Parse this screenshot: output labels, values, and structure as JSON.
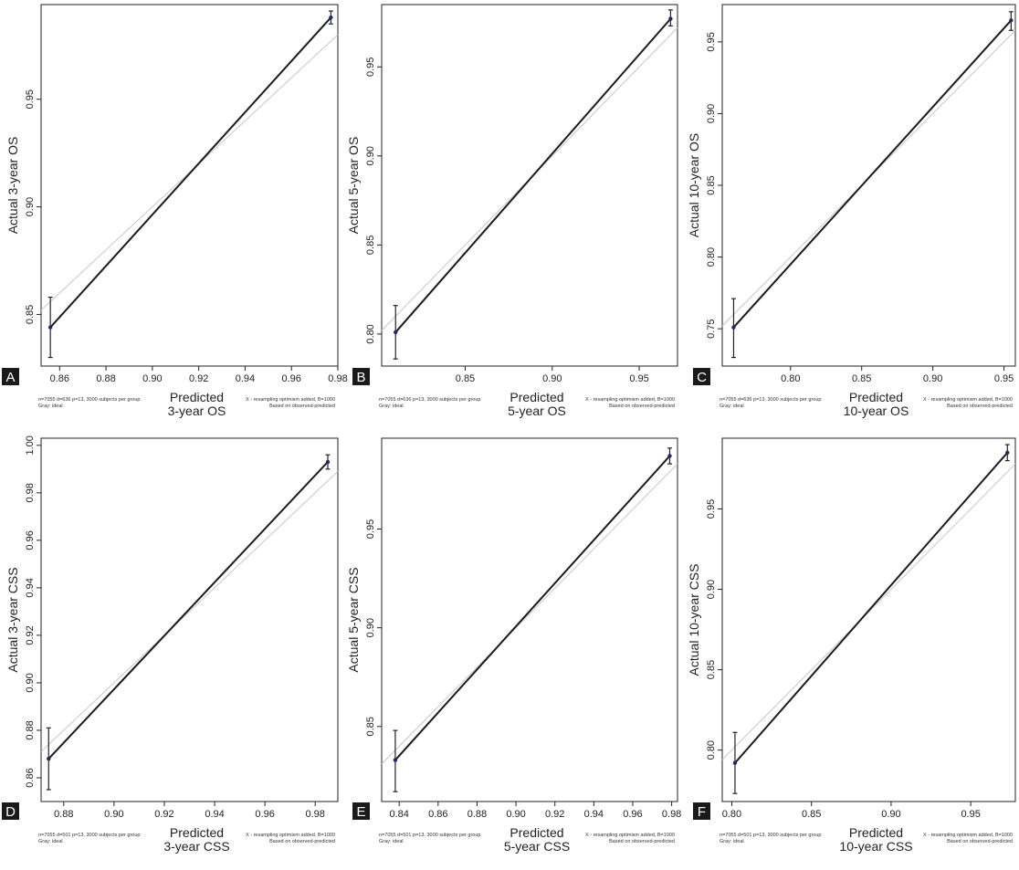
{
  "colors": {
    "calibration_line": "#1a1a1a",
    "ideal_line": "#c8c8c8",
    "point": "#1f2a6e",
    "label_bg": "#1a1a1a"
  },
  "chart_data": [
    {
      "panel": "A",
      "type": "line",
      "xlabel": [
        "Predicted",
        "3-year OS"
      ],
      "ylabel": "Actual 3-year OS",
      "xlim": [
        0.852,
        0.98
      ],
      "ylim": [
        0.826,
        0.994
      ],
      "xticks": [
        "0.86",
        "0.88",
        "0.90",
        "0.92",
        "0.94",
        "0.96",
        "0.98"
      ],
      "yticks": [
        "0.85",
        "0.90",
        "0.95"
      ],
      "ideal": [
        [
          0.852,
          0.852
        ],
        [
          0.98,
          0.98
        ]
      ],
      "calibration": {
        "x": [
          0.856,
          0.977
        ],
        "y": [
          0.844,
          0.988
        ],
        "ci_low": [
          0.83,
          0.985
        ],
        "ci_high": [
          0.858,
          0.991
        ]
      },
      "note_left": [
        "n=7055 d=636 p=13, 3000 subjects per group",
        "Gray: ideal"
      ],
      "note_right": [
        "X - resampling optimism added, B=1000",
        "Based on observed-predicted"
      ]
    },
    {
      "panel": "B",
      "type": "line",
      "xlabel": [
        "Predicted",
        "5-year OS"
      ],
      "ylabel": "Actual 5-year OS",
      "xlim": [
        0.802,
        0.972
      ],
      "ylim": [
        0.782,
        0.985
      ],
      "xticks": [
        "0.85",
        "0.90",
        "0.95"
      ],
      "yticks": [
        "0.80",
        "0.85",
        "0.90",
        "0.95"
      ],
      "ideal": [
        [
          0.802,
          0.802
        ],
        [
          0.972,
          0.972
        ]
      ],
      "calibration": {
        "x": [
          0.81,
          0.968
        ],
        "y": [
          0.801,
          0.977
        ],
        "ci_low": [
          0.786,
          0.973
        ],
        "ci_high": [
          0.816,
          0.982
        ]
      },
      "note_left": [
        "n=7055 d=636 p=13, 3000 subjects per group",
        "Gray: ideal"
      ],
      "note_right": [
        "X - resampling optimism added, B=1000",
        "Based on observed-predicted"
      ]
    },
    {
      "panel": "C",
      "type": "line",
      "xlabel": [
        "Predicted",
        "10-year OS"
      ],
      "ylabel": "Actual 10-year OS",
      "xlim": [
        0.752,
        0.958
      ],
      "ylim": [
        0.724,
        0.976
      ],
      "xticks": [
        "0.80",
        "0.85",
        "0.90",
        "0.95"
      ],
      "yticks": [
        "0.75",
        "0.80",
        "0.85",
        "0.90",
        "0.95"
      ],
      "ideal": [
        [
          0.752,
          0.752
        ],
        [
          0.958,
          0.958
        ]
      ],
      "calibration": {
        "x": [
          0.76,
          0.955
        ],
        "y": [
          0.751,
          0.965
        ],
        "ci_low": [
          0.73,
          0.958
        ],
        "ci_high": [
          0.771,
          0.971
        ]
      },
      "note_left": [
        "n=7055 d=636 p=13, 3000 subjects per group",
        "Gray: ideal"
      ],
      "note_right": [
        "X - resampling optimism added, B=1000",
        "Based on observed-predicted"
      ]
    },
    {
      "panel": "D",
      "type": "line",
      "xlabel": [
        "Predicted",
        "3-year CSS"
      ],
      "ylabel": "Actual 3-year CSS",
      "xlim": [
        0.871,
        0.989
      ],
      "ylim": [
        0.85,
        1.003
      ],
      "xticks": [
        "0.88",
        "0.90",
        "0.92",
        "0.94",
        "0.96",
        "0.98"
      ],
      "yticks": [
        "0.86",
        "0.88",
        "0.90",
        "0.92",
        "0.94",
        "0.96",
        "0.98",
        "1.00"
      ],
      "ideal": [
        [
          0.871,
          0.871
        ],
        [
          0.989,
          0.989
        ]
      ],
      "calibration": {
        "x": [
          0.874,
          0.985
        ],
        "y": [
          0.868,
          0.993
        ],
        "ci_low": [
          0.855,
          0.99
        ],
        "ci_high": [
          0.881,
          0.996
        ]
      },
      "note_left": [
        "n=7055 d=501 p=13, 3000 subjects per group",
        "Gray: ideal"
      ],
      "note_right": [
        "X - resampling optimism added, B=1000",
        "Based on observed-predicted"
      ]
    },
    {
      "panel": "E",
      "type": "line",
      "xlabel": [
        "Predicted",
        "5-year CSS"
      ],
      "ylabel": "Actual 5-year CSS",
      "xlim": [
        0.831,
        0.983
      ],
      "ylim": [
        0.812,
        0.996
      ],
      "xticks": [
        "0.84",
        "0.86",
        "0.88",
        "0.90",
        "0.92",
        "0.94",
        "0.96",
        "0.98"
      ],
      "yticks": [
        "0.85",
        "0.90",
        "0.95"
      ],
      "ideal": [
        [
          0.831,
          0.831
        ],
        [
          0.983,
          0.983
        ]
      ],
      "calibration": {
        "x": [
          0.838,
          0.979
        ],
        "y": [
          0.833,
          0.987
        ],
        "ci_low": [
          0.817,
          0.983
        ],
        "ci_high": [
          0.848,
          0.991
        ]
      },
      "note_left": [
        "n=7055 d=501 p=13, 3000 subjects per group",
        "Gray: ideal"
      ],
      "note_right": [
        "X - resampling optimism added, B=1000",
        "Based on observed-predicted"
      ]
    },
    {
      "panel": "F",
      "type": "line",
      "xlabel": [
        "Predicted",
        "10-year CSS"
      ],
      "ylabel": "Actual 10-year CSS",
      "xlim": [
        0.794,
        0.978
      ],
      "ylim": [
        0.768,
        0.994
      ],
      "xticks": [
        "0.80",
        "0.85",
        "0.90",
        "0.95"
      ],
      "yticks": [
        "0.80",
        "0.85",
        "0.90",
        "0.95"
      ],
      "ideal": [
        [
          0.794,
          0.794
        ],
        [
          0.978,
          0.978
        ]
      ],
      "calibration": {
        "x": [
          0.802,
          0.973
        ],
        "y": [
          0.792,
          0.985
        ],
        "ci_low": [
          0.773,
          0.98
        ],
        "ci_high": [
          0.811,
          0.99
        ]
      },
      "note_left": [
        "n=7055 d=501 p=13, 3000 subjects per group",
        "Gray: ideal"
      ],
      "note_right": [
        "X - resampling optimism added, B=1000",
        "Based on observed-predicted"
      ]
    }
  ]
}
